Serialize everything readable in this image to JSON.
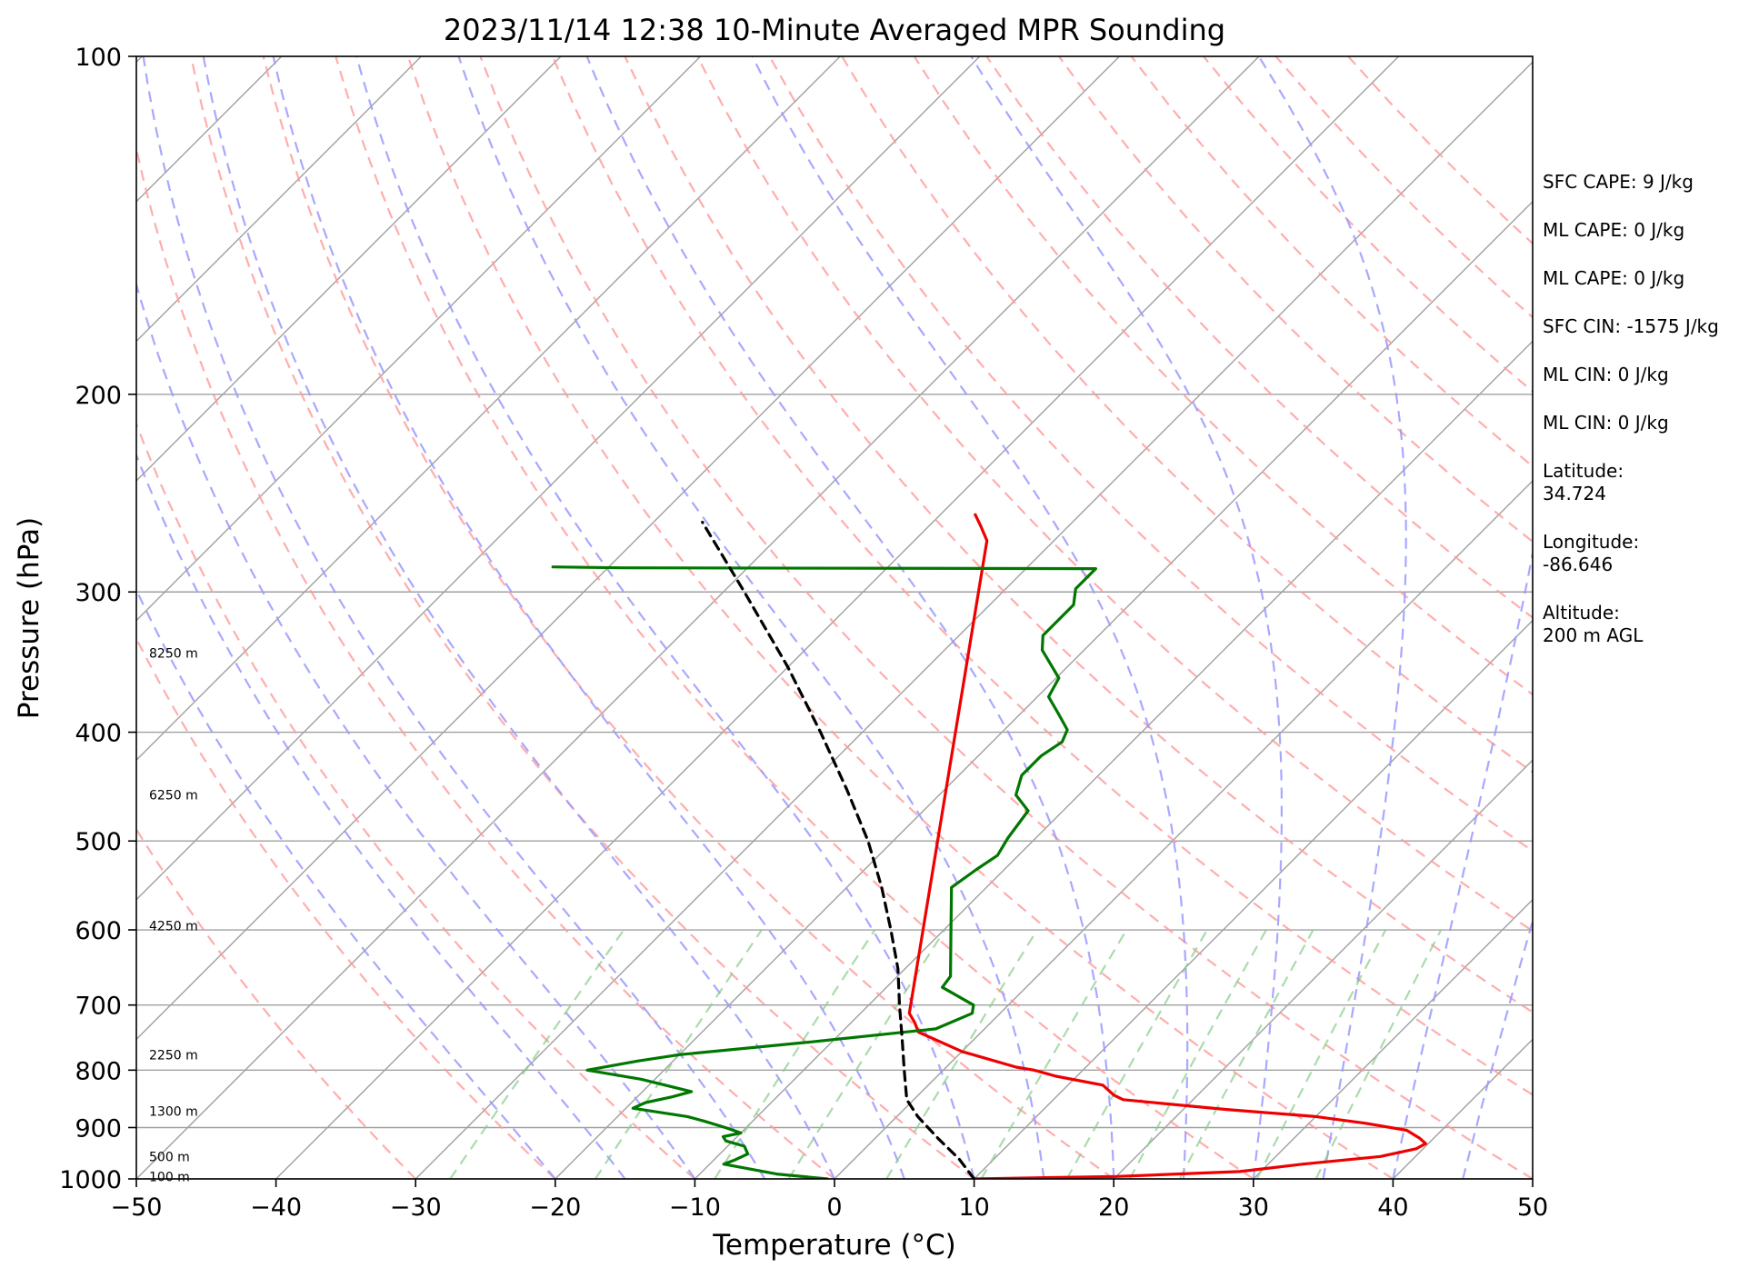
{
  "chart_data": {
    "type": "line",
    "title": "2023/11/14 12:38 10-Minute Averaged MPR Sounding",
    "xlabel": "Temperature (°C)",
    "ylabel": "Pressure (hPa)",
    "xlim": [
      -50,
      50
    ],
    "ylim": [
      1000,
      100
    ],
    "y_scale": "log",
    "skew": 45,
    "grid": true,
    "x_ticks": [
      "−50",
      "−40",
      "−30",
      "−20",
      "−10",
      "0",
      "10",
      "20",
      "30",
      "40",
      "50"
    ],
    "y_ticks": [
      {
        "p": 100,
        "label": "100"
      },
      {
        "p": 200,
        "label": "200"
      },
      {
        "p": 300,
        "label": "300"
      },
      {
        "p": 400,
        "label": "400"
      },
      {
        "p": 500,
        "label": "500"
      },
      {
        "p": 600,
        "label": "600"
      },
      {
        "p": 700,
        "label": "700"
      },
      {
        "p": 800,
        "label": "800"
      },
      {
        "p": 900,
        "label": "900"
      },
      {
        "p": 1000,
        "label": "1000"
      }
    ],
    "height_labels": [
      {
        "p": 340,
        "label": "8250 m"
      },
      {
        "p": 455,
        "label": "6250 m"
      },
      {
        "p": 595,
        "label": "4250 m"
      },
      {
        "p": 775,
        "label": "2250 m"
      },
      {
        "p": 870,
        "label": "1300 m"
      },
      {
        "p": 955,
        "label": "500 m"
      },
      {
        "p": 995,
        "label": "100 m"
      }
    ],
    "series": [
      {
        "name": "",
        "color": "#ee0000",
        "points": [
          {
            "p": 1000,
            "t": 10.0
          },
          {
            "p": 995,
            "t": 20.0
          },
          {
            "p": 985,
            "t": 28.5
          },
          {
            "p": 970,
            "t": 32.5
          },
          {
            "p": 955,
            "t": 37.5
          },
          {
            "p": 940,
            "t": 39.5
          },
          {
            "p": 930,
            "t": 39.8
          },
          {
            "p": 920,
            "t": 39.0
          },
          {
            "p": 905,
            "t": 37.5
          },
          {
            "p": 892,
            "t": 34.0
          },
          {
            "p": 880,
            "t": 30.0
          },
          {
            "p": 867,
            "t": 23.0
          },
          {
            "p": 850,
            "t": 15.0
          },
          {
            "p": 842,
            "t": 14.0
          },
          {
            "p": 825,
            "t": 12.5
          },
          {
            "p": 810,
            "t": 8.5
          },
          {
            "p": 800,
            "t": 6.5
          },
          {
            "p": 795,
            "t": 5.0
          },
          {
            "p": 770,
            "t": 0.0
          },
          {
            "p": 740,
            "t": -4.5
          },
          {
            "p": 725,
            "t": -5.5
          },
          {
            "p": 712,
            "t": -6.5
          },
          {
            "p": 270,
            "t": -34.8
          },
          {
            "p": 262,
            "t": -36.3
          },
          {
            "p": 256,
            "t": -37.5
          }
        ]
      },
      {
        "name": "",
        "color": "#007700",
        "points": [
          {
            "p": 1000,
            "t": -0.5
          },
          {
            "p": 990,
            "t": -4.5
          },
          {
            "p": 970,
            "t": -9.0
          },
          {
            "p": 962,
            "t": -8.5
          },
          {
            "p": 950,
            "t": -8.0
          },
          {
            "p": 935,
            "t": -8.8
          },
          {
            "p": 925,
            "t": -10.5
          },
          {
            "p": 917,
            "t": -11.0
          },
          {
            "p": 910,
            "t": -10.0
          },
          {
            "p": 900,
            "t": -11.5
          },
          {
            "p": 888,
            "t": -13.5
          },
          {
            "p": 880,
            "t": -15.0
          },
          {
            "p": 870,
            "t": -18.0
          },
          {
            "p": 865,
            "t": -19.5
          },
          {
            "p": 855,
            "t": -19.0
          },
          {
            "p": 845,
            "t": -17.5
          },
          {
            "p": 836,
            "t": -16.5
          },
          {
            "p": 815,
            "t": -21.0
          },
          {
            "p": 800,
            "t": -25.5
          },
          {
            "p": 785,
            "t": -22.5
          },
          {
            "p": 775,
            "t": -20.0
          },
          {
            "p": 755,
            "t": -11.5
          },
          {
            "p": 735,
            "t": -3.5
          },
          {
            "p": 712,
            "t": -2.0
          },
          {
            "p": 700,
            "t": -2.5
          },
          {
            "p": 675,
            "t": -6.0
          },
          {
            "p": 660,
            "t": -6.2
          },
          {
            "p": 600,
            "t": -9.5
          },
          {
            "p": 550,
            "t": -12.5
          },
          {
            "p": 530,
            "t": -12.0
          },
          {
            "p": 515,
            "t": -11.5
          },
          {
            "p": 497,
            "t": -12.0
          },
          {
            "p": 470,
            "t": -12.5
          },
          {
            "p": 455,
            "t": -14.5
          },
          {
            "p": 437,
            "t": -15.5
          },
          {
            "p": 420,
            "t": -15.5
          },
          {
            "p": 408,
            "t": -15.0
          },
          {
            "p": 398,
            "t": -15.5
          },
          {
            "p": 385,
            "t": -17.3
          },
          {
            "p": 372,
            "t": -19.2
          },
          {
            "p": 358,
            "t": -19.8
          },
          {
            "p": 338,
            "t": -23.0
          },
          {
            "p": 328,
            "t": -24.0
          },
          {
            "p": 308,
            "t": -24.0
          },
          {
            "p": 298,
            "t": -25.0
          },
          {
            "p": 286,
            "t": -25.0
          },
          {
            "p": 285.5,
            "t": -59.0
          },
          {
            "p": 285,
            "t": -64.0
          }
        ]
      },
      {
        "name": "",
        "color": "#000000",
        "dashed": true,
        "points": [
          {
            "p": 1000,
            "t": 10.0
          },
          {
            "p": 960,
            "t": 7.5
          },
          {
            "p": 920,
            "t": 4.5
          },
          {
            "p": 880,
            "t": 1.5
          },
          {
            "p": 850,
            "t": -0.5
          },
          {
            "p": 800,
            "t": -2.8
          },
          {
            "p": 750,
            "t": -5.2
          },
          {
            "p": 700,
            "t": -7.8
          },
          {
            "p": 650,
            "t": -10.5
          },
          {
            "p": 600,
            "t": -13.8
          },
          {
            "p": 550,
            "t": -17.5
          },
          {
            "p": 500,
            "t": -21.8
          },
          {
            "p": 450,
            "t": -27.0
          },
          {
            "p": 400,
            "t": -33.0
          },
          {
            "p": 350,
            "t": -40.0
          },
          {
            "p": 300,
            "t": -48.5
          },
          {
            "p": 260,
            "t": -56.5
          }
        ]
      }
    ],
    "reference_lines": {
      "isotherm_color": "#a0a0a0",
      "dry_adiabat_color": "#ff9999",
      "moist_adiabat_color": "#9999ff",
      "mixing_ratio_color": "#88cc88"
    }
  },
  "stats": {
    "sfc_cape": "SFC CAPE: 9 J/kg",
    "ml_cape_1": "ML CAPE: 0 J/kg",
    "ml_cape_2": "ML CAPE: 0 J/kg",
    "sfc_cin": "SFC CIN: -1575 J/kg",
    "ml_cin_1": "ML CIN: 0 J/kg",
    "ml_cin_2": "ML CIN: 0 J/kg"
  },
  "location": {
    "latitude_label": "Latitude:",
    "latitude_value": "34.724",
    "longitude_label": "Longitude:",
    "longitude_value": "-86.646",
    "altitude_label": "Altitude:",
    "altitude_value": "200 m AGL"
  }
}
